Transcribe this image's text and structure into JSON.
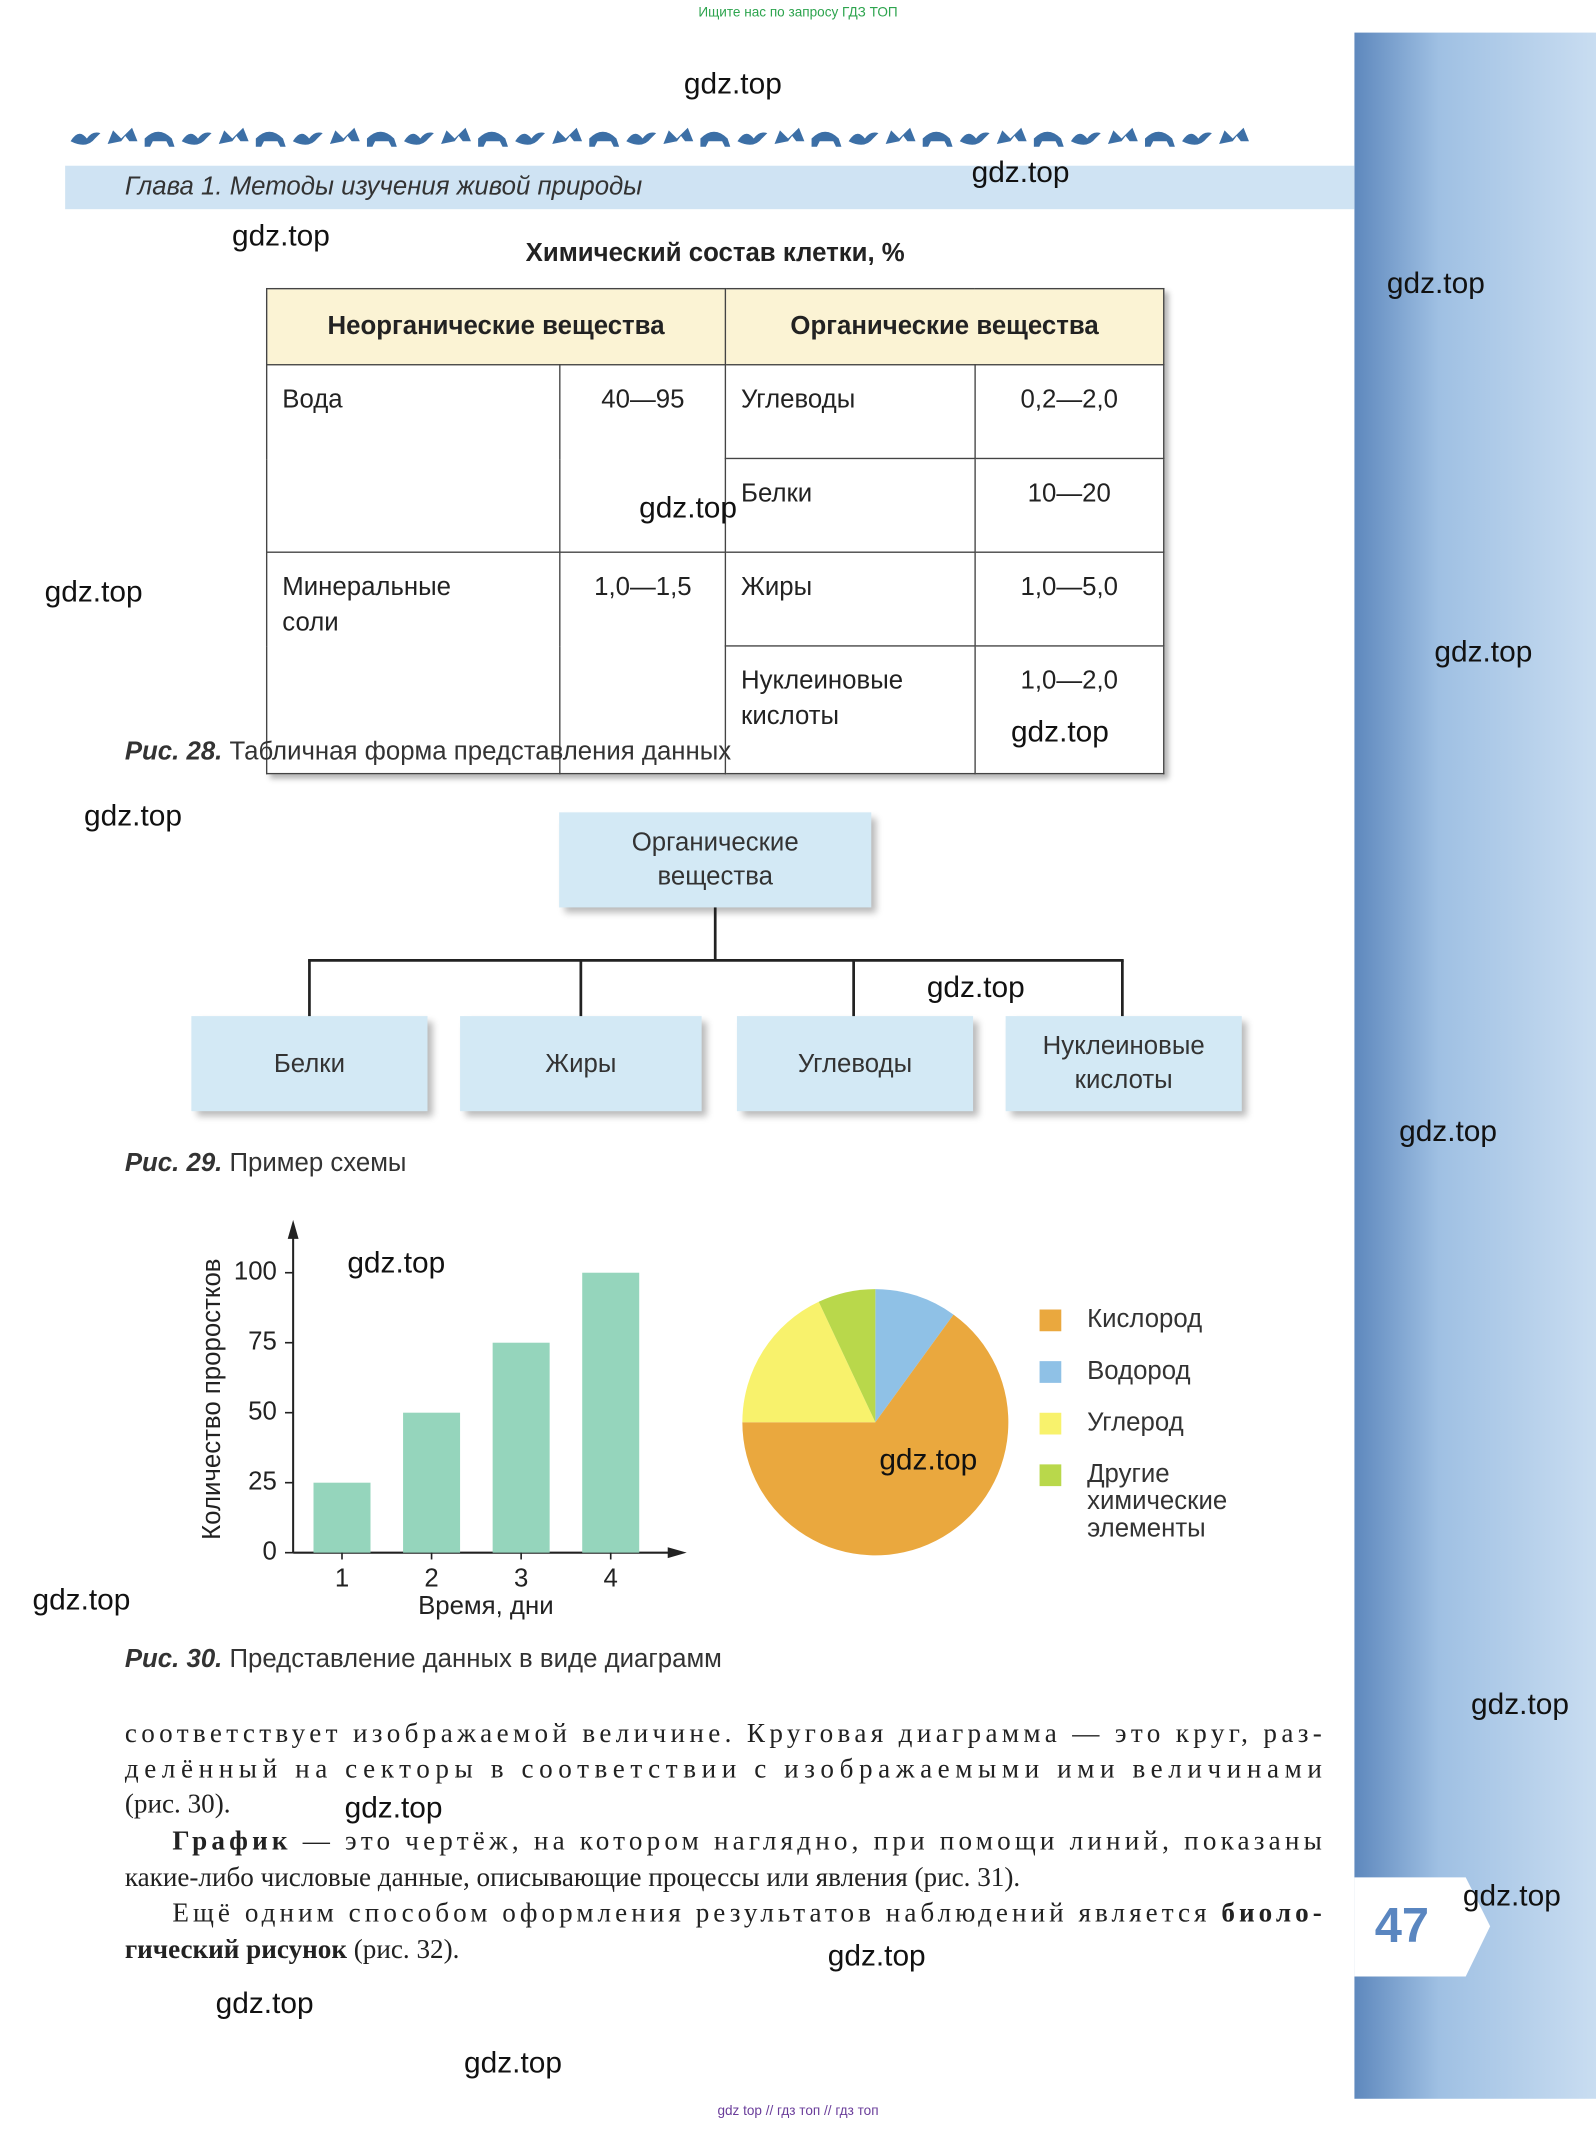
{
  "top_banner": "Ищите нас по запросу ГДЗ ТОП",
  "header": {
    "chapter": "Глава 1. Методы изучения живой природы"
  },
  "table": {
    "title": "Химический состав клетки, %",
    "headers": [
      "Неорганические вещества",
      "Органические вещества"
    ],
    "inorganic": [
      [
        "Вода",
        "40—95"
      ],
      [
        "Минеральные соли",
        "1,0—1,5"
      ]
    ],
    "organic": [
      [
        "Углеводы",
        "0,2—2,0"
      ],
      [
        "Белки",
        "10—20"
      ],
      [
        "Жиры",
        "1,0—5,0"
      ],
      [
        "Нуклеиновые кислоты",
        "1,0—2,0"
      ]
    ],
    "caption": {
      "label": "Рис. 28.",
      "text": "Табличная форма представления данных"
    }
  },
  "scheme": {
    "root": "Органические вещества",
    "children": [
      "Белки",
      "Жиры",
      "Углеводы",
      "Нуклеиновые кислоты"
    ],
    "caption": {
      "label": "Рис. 29.",
      "text": "Пример схемы"
    }
  },
  "chart_data": [
    {
      "type": "bar",
      "categories": [
        "1",
        "2",
        "3",
        "4"
      ],
      "values": [
        25,
        50,
        75,
        100
      ],
      "color": "#95d5bc",
      "ylim": [
        0,
        115
      ],
      "yticks": [
        0,
        25,
        50,
        75,
        100
      ],
      "xlabel": "Время, дни",
      "ylabel": "Количество проростков"
    },
    {
      "type": "pie",
      "categories": [
        "Кислород",
        "Водород",
        "Углерод",
        "Другие химические элементы"
      ],
      "values": [
        65,
        10,
        18,
        7
      ],
      "colors": [
        "#eaa83e",
        "#8fc1e6",
        "#f8f26c",
        "#b9d84b"
      ]
    }
  ],
  "figure_caption": {
    "label": "Рис. 30.",
    "text": "Представление данных в виде диаграмм"
  },
  "body_text": [
    [
      {
        "text": "соответствует изображаемой величине. Круговая диаграмма — это круг, раз-"
      }
    ],
    [
      {
        "text": "делённый на секторы в соответствии с изображаемыми ими величинами"
      }
    ],
    [
      {
        "text": "(рис. 30)."
      }
    ],
    [
      {
        "text": "График",
        "bold": true
      },
      {
        "text": " — это чертёж, на котором наглядно, при помощи линий, показаны"
      }
    ],
    [
      {
        "text": "какие-либо числовые данные, описывающие процессы или явления (рис. 31)."
      }
    ],
    [
      {
        "text": "Ещё одним способом оформления результатов наблюдений является "
      },
      {
        "text": "биоло-",
        "bold": true
      }
    ],
    [
      {
        "text": "гический рисунок",
        "bold": true
      },
      {
        "text": " (рис. 32)."
      }
    ]
  ],
  "page_number": "47",
  "watermarks": [
    "gdz.top",
    "gdz.top",
    "gdz.top",
    "gdz.top",
    "gdz.top",
    "gdz.top",
    "gdz.top",
    "gdz.top",
    "gdz.top",
    "gdz.top",
    "gdz.top",
    "gdz.top",
    "gdz.top",
    "gdz.top",
    "gdz.top",
    "gdz.top",
    "gdz.top",
    "gdz.top",
    "gdz.top",
    "gdz.top"
  ],
  "footer": "gdz top // гдз топ // гдз топ"
}
